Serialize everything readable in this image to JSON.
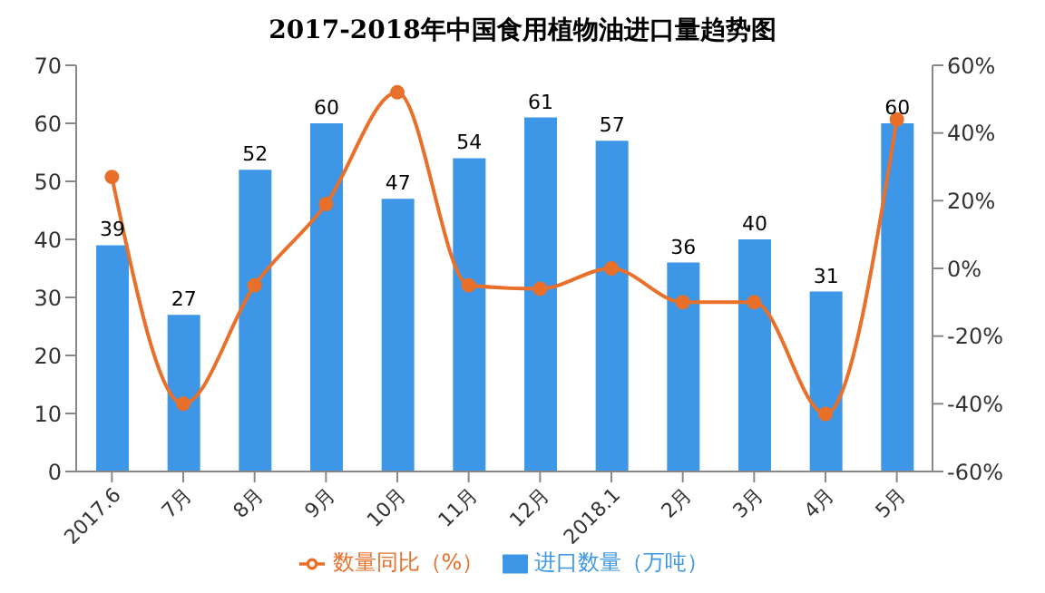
{
  "chart_data": {
    "type": "bar",
    "title": "2017-2018年中国食用植物油进口量趋势图",
    "categories": [
      "2017.6",
      "7月",
      "8月",
      "9月",
      "10月",
      "11月",
      "12月",
      "2018.1",
      "2月",
      "3月",
      "4月",
      "5月"
    ],
    "series": [
      {
        "name": "进口数量（万吨）",
        "color": "#3d97e6",
        "values": [
          39,
          27,
          52,
          60,
          47,
          54,
          61,
          57,
          36,
          40,
          31,
          60
        ],
        "value_labels": [
          "39",
          "27",
          "52",
          "60",
          "47",
          "54",
          "61",
          "57",
          "36",
          "40",
          "31",
          "60"
        ]
      },
      {
        "name": "数量同比（%）",
        "type": "line",
        "axis": "y2",
        "color": "#e8702a",
        "values": [
          27,
          -40,
          -5,
          19,
          52,
          -5,
          -6,
          0,
          -10,
          -10,
          -43,
          44
        ]
      }
    ],
    "ylim": [
      0,
      70
    ],
    "yticks": [
      0,
      10,
      20,
      30,
      40,
      50,
      60,
      70
    ],
    "y2lim": [
      -60,
      60
    ],
    "y2ticks": [
      {
        "value": -60,
        "label": "-60%"
      },
      {
        "value": -40,
        "label": "-40%"
      },
      {
        "value": -20,
        "label": "-20%"
      },
      {
        "value": 0,
        "label": "0%"
      },
      {
        "value": 20,
        "label": "20%"
      },
      {
        "value": 40,
        "label": "40%"
      },
      {
        "value": 60,
        "label": "60%"
      }
    ],
    "grid": false,
    "legend": "bottom",
    "marker": "circle",
    "line_style": "solid"
  }
}
